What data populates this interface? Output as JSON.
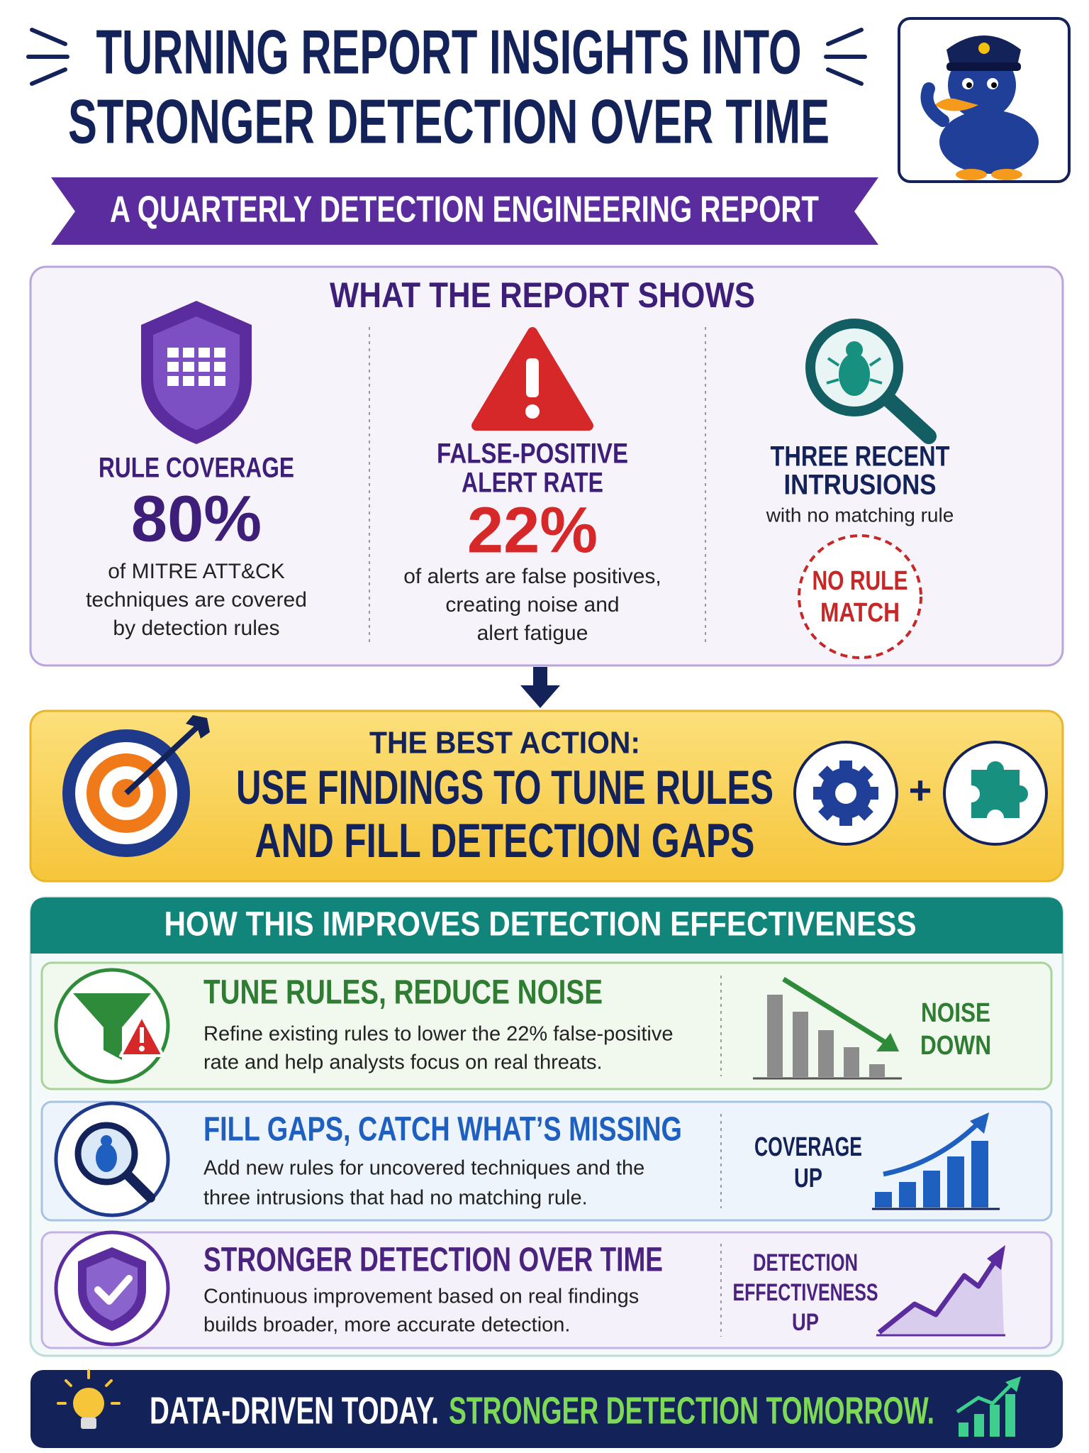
{
  "header": {
    "title": [
      "TURNING REPORT INSIGHTS INTO",
      "STRONGER DETECTION OVER TIME"
    ],
    "subtitle": "A QUARTERLY DETECTION ENGINEERING REPORT"
  },
  "report": {
    "title": "WHAT THE REPORT SHOWS",
    "items": [
      {
        "label": [
          "RULE COVERAGE"
        ],
        "stat": "80%",
        "text": [
          "of MITRE ATT&CK",
          "techniques are covered",
          "by detection rules"
        ]
      },
      {
        "label": [
          "FALSE-POSITIVE",
          "ALERT RATE"
        ],
        "stat": "22%",
        "text": [
          "of alerts are false positives,",
          "creating noise and",
          "alert fatigue"
        ]
      },
      {
        "label": [
          "THREE RECENT",
          "INTRUSIONS"
        ],
        "note": "with no matching rule",
        "badge": [
          "NO RULE",
          "MATCH"
        ]
      }
    ]
  },
  "action": {
    "kicker": "THE BEST ACTION:",
    "headline": [
      "USE FINDINGS TO TUNE RULES",
      "AND FILL DETECTION GAPS"
    ],
    "join": "+"
  },
  "improvements": {
    "title": "HOW THIS IMPROVES DETECTION EFFECTIVENESS",
    "rows": [
      {
        "title": "TUNE RULES, REDUCE NOISE",
        "text": [
          "Refine existing rules to lower the 22% false-positive",
          "rate and help analysts focus on real threats."
        ],
        "tag": [
          "NOISE",
          "DOWN"
        ]
      },
      {
        "title": "FILL GAPS, CATCH WHAT’S MISSING",
        "text": [
          "Add new rules for uncovered techniques and the",
          "three intrusions that had no matching rule."
        ],
        "tag": [
          "COVERAGE",
          "UP"
        ]
      },
      {
        "title": "STRONGER DETECTION OVER TIME",
        "text": [
          "Continuous improvement based on real findings",
          "builds broader, more accurate detection."
        ],
        "tag": [
          "DETECTION",
          "EFFECTIVENESS",
          "UP"
        ]
      }
    ]
  },
  "footer": {
    "lead": "DATA-DRIVEN TODAY.",
    "highlight": "STRONGER DETECTION TOMORROW."
  }
}
